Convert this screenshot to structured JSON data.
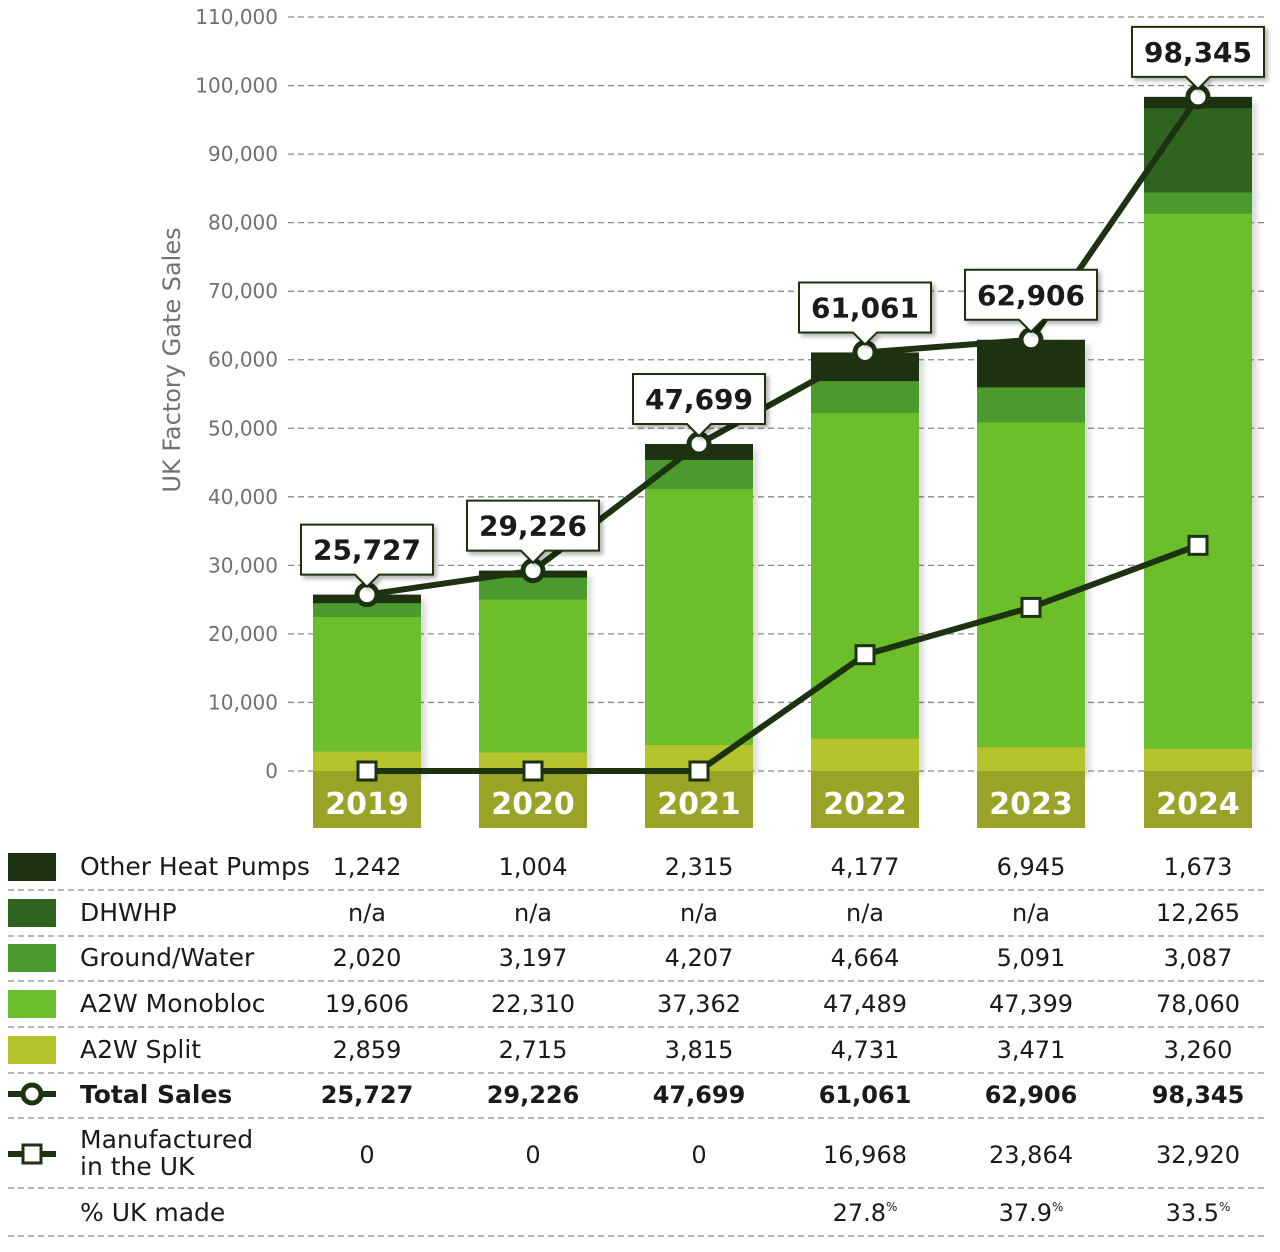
{
  "chart_data": {
    "type": "bar",
    "stacked": true,
    "ylabel": "UK Factory Gate Sales",
    "ylim": [
      0,
      110000
    ],
    "yticks": [
      "0",
      "10,000",
      "20,000",
      "30,000",
      "40,000",
      "50,000",
      "60,000",
      "70,000",
      "80,000",
      "90,000",
      "100,000",
      "110,000"
    ],
    "grid": true,
    "categories": [
      "2019",
      "2020",
      "2021",
      "2022",
      "2023",
      "2024"
    ],
    "series": [
      {
        "name": "A2W Split",
        "color": "#b5c42c",
        "values": [
          2859,
          2715,
          3815,
          4731,
          3471,
          3260
        ],
        "labels": [
          "2,859",
          "2,715",
          "3,815",
          "4,731",
          "3,471",
          "3,260"
        ]
      },
      {
        "name": "A2W Monobloc",
        "color": "#6cbf2a",
        "values": [
          19606,
          22310,
          37362,
          47489,
          47399,
          78060
        ],
        "labels": [
          "19,606",
          "22,310",
          "37,362",
          "47,489",
          "47,399",
          "78,060"
        ]
      },
      {
        "name": "Ground/Water",
        "color": "#4a9a2e",
        "values": [
          2020,
          3197,
          4207,
          4664,
          5091,
          3087
        ],
        "labels": [
          "2,020",
          "3,197",
          "4,207",
          "4,664",
          "5,091",
          "3,087"
        ]
      },
      {
        "name": "DHWHP",
        "color": "#2f6420",
        "values": [
          null,
          null,
          null,
          null,
          null,
          12265
        ],
        "labels": [
          "n/a",
          "n/a",
          "n/a",
          "n/a",
          "n/a",
          "12,265"
        ]
      },
      {
        "name": "Other Heat Pumps",
        "color": "#1c3210",
        "values": [
          1242,
          1004,
          2315,
          4177,
          6945,
          1673
        ],
        "labels": [
          "1,242",
          "1,004",
          "2,315",
          "4,177",
          "6,945",
          "1,673"
        ]
      }
    ],
    "lines": [
      {
        "name": "Total Sales",
        "marker": "circle",
        "values": [
          25727,
          29226,
          47699,
          61061,
          62906,
          98345
        ],
        "labels": [
          "25,727",
          "29,226",
          "47,699",
          "61,061",
          "62,906",
          "98,345"
        ]
      },
      {
        "name": "Manufactured in the UK",
        "name_lines": [
          "Manufactured",
          "in the UK"
        ],
        "marker": "square",
        "values": [
          0,
          0,
          0,
          16968,
          23864,
          32920
        ],
        "labels": [
          "0",
          "0",
          "0",
          "16,968",
          "23,864",
          "32,920"
        ]
      }
    ],
    "pct_row": {
      "name": "% UK made",
      "labels": [
        "",
        "",
        "",
        "27.8",
        "37.9",
        "33.5"
      ],
      "suffix": "%"
    }
  }
}
